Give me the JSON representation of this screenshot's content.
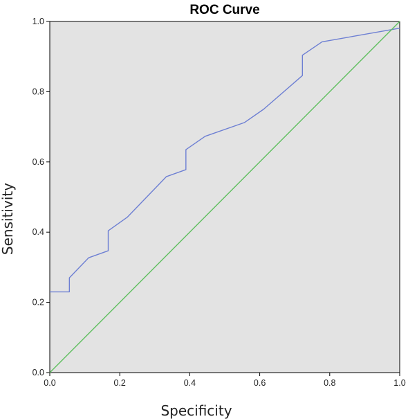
{
  "chart_data": {
    "type": "line",
    "title": "ROC Curve",
    "xlabel": "Specificity",
    "ylabel": "Sensitivity",
    "xlim": [
      0,
      1
    ],
    "ylim": [
      0,
      1
    ],
    "x_ticks": [
      "0.0",
      "0.2",
      "0.4",
      "0.6",
      "0.8",
      "1.0"
    ],
    "y_ticks": [
      "0.0",
      "0.2",
      "0.4",
      "0.6",
      "0.8",
      "1.0"
    ],
    "grid": false,
    "background_color": "#e3e3e3",
    "series": [
      {
        "color": "#6d7fd3",
        "points": [
          [
            0.0,
            0.23
          ],
          [
            0.056,
            0.23
          ],
          [
            0.056,
            0.27
          ],
          [
            0.111,
            0.327
          ],
          [
            0.167,
            0.347
          ],
          [
            0.167,
            0.404
          ],
          [
            0.222,
            0.443
          ],
          [
            0.333,
            0.558
          ],
          [
            0.389,
            0.578
          ],
          [
            0.389,
            0.635
          ],
          [
            0.444,
            0.673
          ],
          [
            0.556,
            0.712
          ],
          [
            0.611,
            0.75
          ],
          [
            0.722,
            0.846
          ],
          [
            0.722,
            0.904
          ],
          [
            0.778,
            0.942
          ],
          [
            1.0,
            0.981
          ]
        ]
      },
      {
        "color": "#5fbf5f",
        "points": [
          [
            0.0,
            0.0
          ],
          [
            1.0,
            1.0
          ]
        ]
      }
    ]
  }
}
